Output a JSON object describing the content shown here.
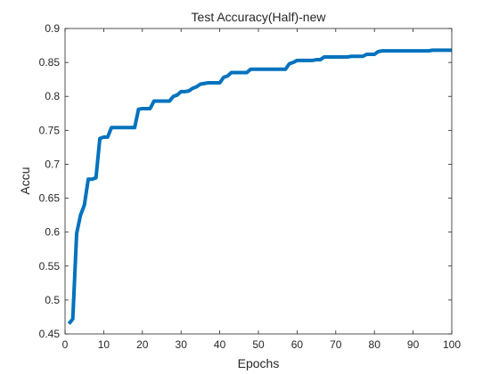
{
  "chart_data": {
    "type": "line",
    "title": "Test Accuracy(Half)-new",
    "xlabel": "Epochs",
    "ylabel": "Accu",
    "xlim": [
      0,
      100
    ],
    "ylim": [
      0.45,
      0.9
    ],
    "x_ticks": [
      0,
      10,
      20,
      30,
      40,
      50,
      60,
      70,
      80,
      90,
      100
    ],
    "x_tick_labels": [
      "0",
      "10",
      "20",
      "30",
      "40",
      "50",
      "60",
      "70",
      "80",
      "90",
      "100"
    ],
    "y_ticks": [
      0.45,
      0.5,
      0.55,
      0.6,
      0.65,
      0.7,
      0.75,
      0.8,
      0.85,
      0.9
    ],
    "y_tick_labels": [
      "0.45",
      "0.5",
      "0.55",
      "0.6",
      "0.65",
      "0.7",
      "0.75",
      "0.8",
      "0.85",
      "0.9"
    ],
    "grid": false,
    "box": true,
    "series": [
      {
        "color": "#0072BD",
        "x": [
          1,
          2,
          3,
          4,
          5,
          6,
          7,
          8,
          9,
          10,
          11,
          12,
          13,
          14,
          15,
          16,
          17,
          18,
          19,
          20,
          21,
          22,
          23,
          24,
          25,
          26,
          27,
          28,
          29,
          30,
          31,
          32,
          33,
          34,
          35,
          36,
          37,
          38,
          39,
          40,
          41,
          42,
          43,
          44,
          45,
          46,
          47,
          48,
          49,
          50,
          51,
          52,
          53,
          54,
          55,
          56,
          57,
          58,
          59,
          60,
          61,
          62,
          63,
          64,
          65,
          66,
          67,
          68,
          69,
          70,
          71,
          72,
          73,
          74,
          75,
          76,
          77,
          78,
          79,
          80,
          81,
          82,
          83,
          84,
          85,
          86,
          87,
          88,
          89,
          90,
          91,
          92,
          93,
          94,
          95,
          96,
          97,
          98,
          99,
          100
        ],
        "y": [
          0.465,
          0.472,
          0.598,
          0.625,
          0.64,
          0.678,
          0.678,
          0.68,
          0.738,
          0.74,
          0.74,
          0.754,
          0.754,
          0.754,
          0.754,
          0.754,
          0.754,
          0.754,
          0.781,
          0.782,
          0.782,
          0.782,
          0.793,
          0.793,
          0.793,
          0.793,
          0.793,
          0.8,
          0.802,
          0.807,
          0.807,
          0.808,
          0.812,
          0.814,
          0.818,
          0.819,
          0.82,
          0.82,
          0.82,
          0.82,
          0.828,
          0.83,
          0.835,
          0.835,
          0.835,
          0.835,
          0.835,
          0.84,
          0.84,
          0.84,
          0.84,
          0.84,
          0.84,
          0.84,
          0.84,
          0.84,
          0.84,
          0.848,
          0.85,
          0.853,
          0.853,
          0.853,
          0.853,
          0.853,
          0.854,
          0.854,
          0.858,
          0.858,
          0.858,
          0.858,
          0.858,
          0.858,
          0.858,
          0.859,
          0.859,
          0.859,
          0.859,
          0.862,
          0.862,
          0.862,
          0.866,
          0.867,
          0.867,
          0.867,
          0.867,
          0.867,
          0.867,
          0.867,
          0.867,
          0.867,
          0.867,
          0.867,
          0.867,
          0.867,
          0.868,
          0.868,
          0.868,
          0.868,
          0.868,
          0.868
        ]
      }
    ]
  }
}
